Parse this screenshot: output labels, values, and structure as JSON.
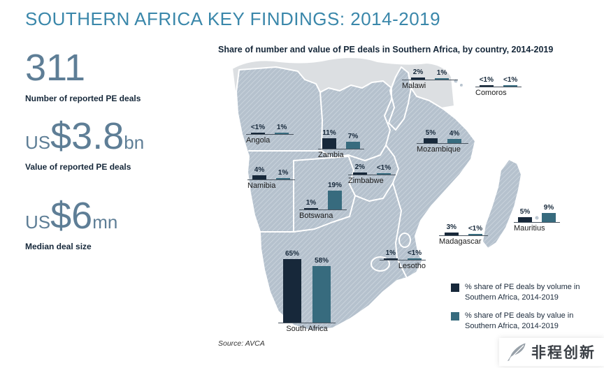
{
  "header": {
    "title": "SOUTHERN AFRICA KEY FINDINGS: 2014-2019"
  },
  "stats": [
    {
      "prefix": "",
      "value": "311",
      "suffix": "",
      "label": "Number of reported PE deals"
    },
    {
      "prefix": "US",
      "value": "$3.8",
      "suffix": "bn",
      "label": "Value of reported PE deals"
    },
    {
      "prefix": "US",
      "value": "$6",
      "suffix": "mn",
      "label": "Median deal size"
    }
  ],
  "chart_data": {
    "type": "bar",
    "title": "Share of number and value of PE deals in Southern Africa, by country, 2014-2019",
    "colors": {
      "volume": "#17283a",
      "value": "#376b7e"
    },
    "legend": [
      {
        "label": "% share of PE deals by volume in Southern Africa, 2014-2019",
        "color": "#17283a"
      },
      {
        "label": "% share of PE deals by value in Southern Africa, 2014-2019",
        "color": "#376b7e"
      }
    ],
    "countries": [
      {
        "name": "Malawi",
        "volume_label": "2%",
        "value_label": "1%",
        "volume_pct": 2,
        "value_pct": 1
      },
      {
        "name": "Comoros",
        "volume_label": "<1%",
        "value_label": "<1%",
        "volume_pct": 0.5,
        "value_pct": 0.5
      },
      {
        "name": "Angola",
        "volume_label": "<1%",
        "value_label": "1%",
        "volume_pct": 0.5,
        "value_pct": 1
      },
      {
        "name": "Zambia",
        "volume_label": "11%",
        "value_label": "7%",
        "volume_pct": 11,
        "value_pct": 7
      },
      {
        "name": "Mozambique",
        "volume_label": "5%",
        "value_label": "4%",
        "volume_pct": 5,
        "value_pct": 4
      },
      {
        "name": "Namibia",
        "volume_label": "4%",
        "value_label": "1%",
        "volume_pct": 4,
        "value_pct": 1
      },
      {
        "name": "Zimbabwe",
        "volume_label": "2%",
        "value_label": "<1%",
        "volume_pct": 2,
        "value_pct": 0.5
      },
      {
        "name": "Botswana",
        "volume_label": "1%",
        "value_label": "19%",
        "volume_pct": 1,
        "value_pct": 19
      },
      {
        "name": "Mauritius",
        "volume_label": "5%",
        "value_label": "9%",
        "volume_pct": 5,
        "value_pct": 9
      },
      {
        "name": "Madagascar",
        "volume_label": "3%",
        "value_label": "<1%",
        "volume_pct": 3,
        "value_pct": 0.5
      },
      {
        "name": "Lesotho",
        "volume_label": "1%",
        "value_label": "<1%",
        "volume_pct": 1,
        "value_pct": 0.5
      },
      {
        "name": "South Africa",
        "volume_label": "65%",
        "value_label": "58%",
        "volume_pct": 65,
        "value_pct": 58
      }
    ],
    "source": "Source: AVCA"
  },
  "watermark": {
    "text": "非程创新"
  }
}
